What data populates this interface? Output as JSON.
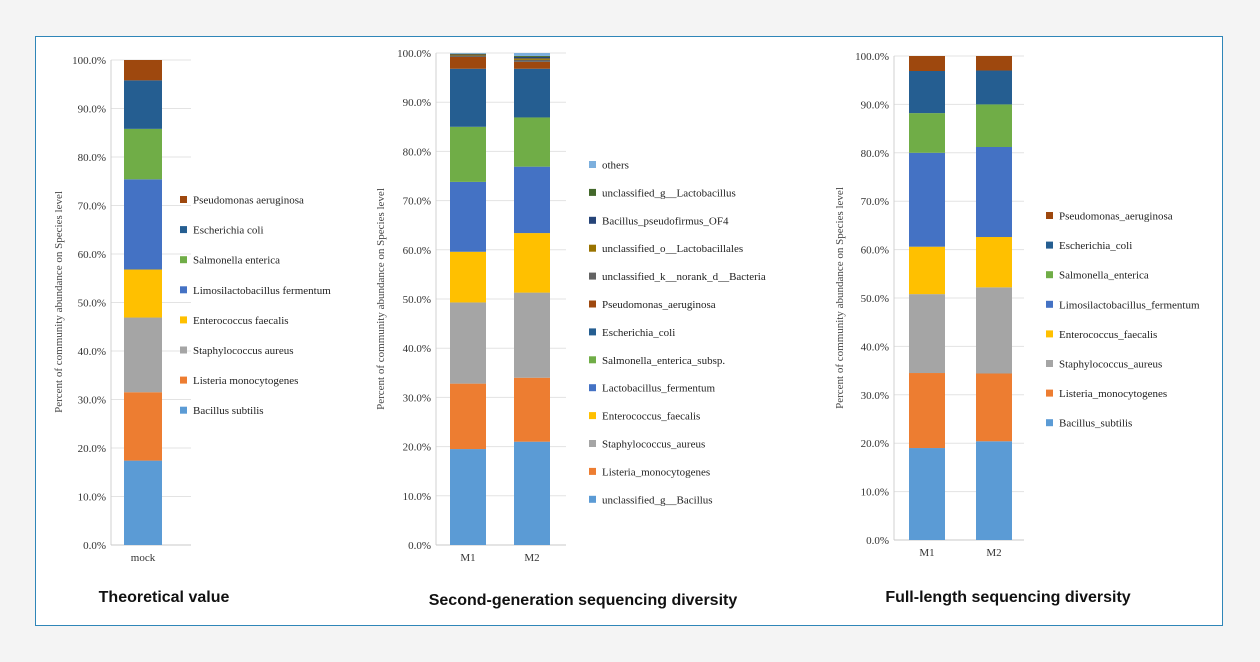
{
  "chart_data": [
    {
      "type": "bar",
      "stacked": true,
      "caption": "Theoretical value",
      "ylabel": "Percent of community abundance on Species level",
      "ylim": [
        0,
        100
      ],
      "yticks": [
        "0.0%",
        "10.0%",
        "20.0%",
        "30.0%",
        "40.0%",
        "50.0%",
        "60.0%",
        "70.0%",
        "80.0%",
        "90.0%",
        "100.0%"
      ],
      "categories": [
        "mock"
      ],
      "series": [
        {
          "name": "Bacillus subtilis",
          "color": "#5b9bd5",
          "values": [
            17.4
          ]
        },
        {
          "name": "Listeria monocytogenes",
          "color": "#ed7d31",
          "values": [
            14.1
          ]
        },
        {
          "name": "Staphylococcus aureus",
          "color": "#a5a5a5",
          "values": [
            15.4
          ]
        },
        {
          "name": "Enterococcus faecalis",
          "color": "#ffc000",
          "values": [
            9.9
          ]
        },
        {
          "name": "Limosilactobacillus fermentum",
          "color": "#4472c4",
          "values": [
            18.6
          ]
        },
        {
          "name": "Salmonella enterica",
          "color": "#70ad47",
          "values": [
            10.4
          ]
        },
        {
          "name": "Escherichia coli",
          "color": "#255e91",
          "values": [
            10.0
          ]
        },
        {
          "name": "Pseudomonas aeruginosa",
          "color": "#9e480e",
          "values": [
            4.2
          ]
        }
      ]
    },
    {
      "type": "bar",
      "stacked": true,
      "caption": "Second-generation sequencing diversity",
      "ylabel": "Percent of community abundance on Species level",
      "ylim": [
        0,
        100
      ],
      "yticks": [
        "0.0%",
        "10.0%",
        "20.0%",
        "30.0%",
        "40.0%",
        "50.0%",
        "60.0%",
        "70.0%",
        "80.0%",
        "90.0%",
        "100.0%"
      ],
      "categories": [
        "M1",
        "M2"
      ],
      "series": [
        {
          "name": "unclassified_g__Bacillus",
          "color": "#5b9bd5",
          "values": [
            19.5,
            21.0
          ]
        },
        {
          "name": "Listeria_monocytogenes",
          "color": "#ed7d31",
          "values": [
            13.3,
            13.0
          ]
        },
        {
          "name": "Staphylococcus_aureus",
          "color": "#a5a5a5",
          "values": [
            16.5,
            17.3
          ]
        },
        {
          "name": "Enterococcus_faecalis",
          "color": "#ffc000",
          "values": [
            10.3,
            12.1
          ]
        },
        {
          "name": "Lactobacillus_fermentum",
          "color": "#4472c4",
          "values": [
            14.2,
            13.5
          ]
        },
        {
          "name": "Salmonella_enterica_subsp.",
          "color": "#70ad47",
          "values": [
            11.2,
            10.0
          ]
        },
        {
          "name": "Escherichia_coli",
          "color": "#255e91",
          "values": [
            11.8,
            9.9
          ]
        },
        {
          "name": "Pseudomonas_aeruginosa",
          "color": "#9e480e",
          "values": [
            2.4,
            1.4
          ]
        },
        {
          "name": "unclassified_k__norank_d__Bacteria",
          "color": "#636363",
          "values": [
            0.3,
            0.4
          ]
        },
        {
          "name": "unclassified_o__Lactobacillales",
          "color": "#997300",
          "values": [
            0.2,
            0.3
          ]
        },
        {
          "name": "Bacillus_pseudofirmus_OF4",
          "color": "#264478",
          "values": [
            0.1,
            0.3
          ]
        },
        {
          "name": "unclassified_g__Lactobacillus",
          "color": "#43682b",
          "values": [
            0.05,
            0.2
          ]
        },
        {
          "name": "others",
          "color": "#7cafdd",
          "values": [
            0.15,
            0.6
          ]
        }
      ]
    },
    {
      "type": "bar",
      "stacked": true,
      "caption": "Full-length sequencing diversity",
      "ylabel": "Percent of community abundance on Species level",
      "ylim": [
        0,
        100
      ],
      "yticks": [
        "0.0%",
        "10.0%",
        "20.0%",
        "30.0%",
        "40.0%",
        "50.0%",
        "60.0%",
        "70.0%",
        "80.0%",
        "90.0%",
        "100.0%"
      ],
      "categories": [
        "M1",
        "M2"
      ],
      "series": [
        {
          "name": "Bacillus_subtilis",
          "color": "#5b9bd5",
          "values": [
            19.0,
            20.4
          ]
        },
        {
          "name": "Listeria_monocytogenes",
          "color": "#ed7d31",
          "values": [
            15.5,
            14.0
          ]
        },
        {
          "name": "Staphylococcus_aureus",
          "color": "#a5a5a5",
          "values": [
            16.3,
            17.8
          ]
        },
        {
          "name": "Enterococcus_faecalis",
          "color": "#ffc000",
          "values": [
            9.8,
            10.4
          ]
        },
        {
          "name": "Limosilactobacillus_fermentum",
          "color": "#4472c4",
          "values": [
            19.4,
            18.6
          ]
        },
        {
          "name": "Salmonella_enterica",
          "color": "#70ad47",
          "values": [
            8.2,
            8.8
          ]
        },
        {
          "name": "Escherichia_coli",
          "color": "#255e91",
          "values": [
            8.7,
            7.0
          ]
        },
        {
          "name": "Pseudomonas_aeruginosa",
          "color": "#9e480e",
          "values": [
            3.1,
            3.0
          ]
        }
      ]
    }
  ]
}
